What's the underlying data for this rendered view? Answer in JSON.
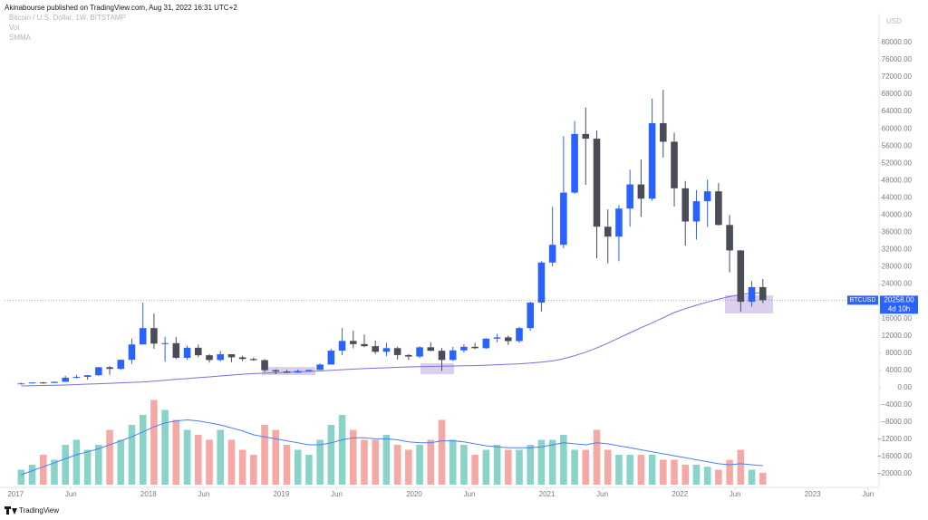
{
  "header": "Akinabourse published on TradingView.com, Aug 31, 2022 16:31 UTC+2",
  "footer": "TradingView",
  "chart_data": {
    "type": "candlestick",
    "title": "Bitcoin / U.S. Dollar, 1W, BITSTAMP",
    "volume_label": "Vol",
    "smma_label": "SMMA",
    "currency": "USD",
    "symbol": "BTCUSD",
    "last_price": {
      "value": 20258,
      "label": "20258.00"
    },
    "countdown": "4d 10h",
    "up_color": "#2962ff",
    "down_color": "#4a4d57",
    "volume_up_color": "#89d3c9",
    "volume_down_color": "#f5a9a5",
    "smma_color": "#7e6fd6",
    "volume_ma_color": "#4a7ff0",
    "x": [
      "2017-01",
      "2017-02",
      "2017-03",
      "2017-04",
      "2017-05",
      "2017-06",
      "2017-07",
      "2017-08",
      "2017-09",
      "2017-10",
      "2017-11",
      "2017-12",
      "2018-01",
      "2018-02",
      "2018-03",
      "2018-04",
      "2018-05",
      "2018-06",
      "2018-07",
      "2018-08",
      "2018-09",
      "2018-10",
      "2018-11",
      "2018-12",
      "2019-01",
      "2019-02",
      "2019-03",
      "2019-04",
      "2019-05",
      "2019-06",
      "2019-07",
      "2019-08",
      "2019-09",
      "2019-10",
      "2019-11",
      "2019-12",
      "2020-01",
      "2020-02",
      "2020-03",
      "2020-04",
      "2020-05",
      "2020-06",
      "2020-07",
      "2020-08",
      "2020-09",
      "2020-10",
      "2020-11",
      "2020-12",
      "2021-01",
      "2021-02",
      "2021-03",
      "2021-04",
      "2021-05",
      "2021-06",
      "2021-07",
      "2021-08",
      "2021-09",
      "2021-10",
      "2021-11",
      "2021-12",
      "2022-01",
      "2022-02",
      "2022-03",
      "2022-04",
      "2022-05",
      "2022-06",
      "2022-07",
      "2022-08"
    ],
    "open": [
      963,
      970,
      1190,
      1080,
      1350,
      2300,
      2480,
      2870,
      4730,
      4340,
      6450,
      10000,
      13800,
      10200,
      10300,
      6900,
      9240,
      7500,
      6400,
      7730,
      7030,
      6630,
      6370,
      4040,
      3740,
      3460,
      3850,
      4100,
      5350,
      8570,
      10820,
      10080,
      9600,
      8300,
      9150,
      7550,
      7190,
      9350,
      8540,
      6410,
      8630,
      9460,
      9140,
      11350,
      11650,
      10780,
      13800,
      19700,
      28990,
      33100,
      45200,
      58800,
      57700,
      37300,
      35000,
      41500,
      47100,
      43800,
      61300,
      57000,
      46200,
      38500,
      43200,
      45500,
      37700,
      31800,
      19900,
      23300
    ],
    "high": [
      1150,
      1200,
      1350,
      1350,
      2760,
      3000,
      2920,
      4750,
      5000,
      6470,
      11400,
      19700,
      17200,
      11800,
      11700,
      9750,
      9990,
      7770,
      8500,
      7760,
      7410,
      6990,
      6600,
      4250,
      4100,
      4200,
      4120,
      5600,
      9000,
      13800,
      13200,
      12300,
      10900,
      10400,
      9500,
      7750,
      9580,
      10500,
      9190,
      9470,
      10070,
      10400,
      11440,
      12470,
      12070,
      14100,
      19900,
      29300,
      41900,
      58300,
      61800,
      64900,
      59600,
      41300,
      42300,
      50500,
      52900,
      67000,
      69000,
      59100,
      47900,
      45800,
      48200,
      47400,
      40000,
      31900,
      24700,
      25200
    ],
    "low": [
      750,
      920,
      890,
      1060,
      1350,
      2100,
      1840,
      2700,
      2980,
      4120,
      5500,
      10900,
      9000,
      6000,
      6600,
      6430,
      7050,
      5800,
      6100,
      5880,
      6150,
      6200,
      3600,
      3130,
      3400,
      3400,
      3690,
      4080,
      5330,
      7500,
      9100,
      9400,
      7800,
      7300,
      6500,
      6430,
      6850,
      8450,
      3850,
      6150,
      8100,
      8900,
      8990,
      10550,
      9900,
      10400,
      13200,
      17600,
      28100,
      32300,
      44900,
      47000,
      30000,
      28800,
      29300,
      37300,
      39600,
      43300,
      53300,
      42000,
      32900,
      34300,
      37200,
      37600,
      26700,
      17600,
      18800,
      19600
    ],
    "close": [
      970,
      1190,
      1080,
      1350,
      2300,
      2480,
      2870,
      4730,
      4340,
      6450,
      10000,
      13800,
      10200,
      10300,
      6900,
      9240,
      7500,
      6400,
      7730,
      7030,
      6630,
      6370,
      4040,
      3740,
      3460,
      3850,
      4100,
      5350,
      8570,
      10820,
      10080,
      9600,
      8300,
      9150,
      7550,
      7190,
      9350,
      8540,
      6410,
      8630,
      9460,
      9140,
      11350,
      11650,
      10780,
      13800,
      19700,
      28990,
      33100,
      45200,
      58800,
      57700,
      37300,
      35000,
      41500,
      47100,
      43800,
      61300,
      57000,
      46200,
      38500,
      43200,
      45500,
      37700,
      31800,
      19900,
      23300,
      20258
    ],
    "smma": [
      400,
      450,
      500,
      550,
      600,
      700,
      800,
      900,
      1000,
      1100,
      1200,
      1300,
      1500,
      1700,
      1900,
      2100,
      2300,
      2500,
      2700,
      2900,
      3100,
      3250,
      3350,
      3450,
      3550,
      3650,
      3750,
      3850,
      4000,
      4150,
      4300,
      4400,
      4500,
      4600,
      4700,
      4800,
      4850,
      4900,
      4950,
      5000,
      5050,
      5100,
      5200,
      5300,
      5400,
      5500,
      5700,
      5900,
      6200,
      6700,
      7400,
      8200,
      9200,
      10300,
      11500,
      12700,
      13900,
      15000,
      16200,
      17400,
      18300,
      19100,
      19800,
      20500,
      21100,
      21600,
      21900,
      22000
    ],
    "volume": [
      15,
      20,
      30,
      25,
      40,
      45,
      35,
      40,
      55,
      45,
      60,
      70,
      85,
      75,
      65,
      55,
      50,
      45,
      55,
      45,
      35,
      30,
      60,
      55,
      40,
      35,
      30,
      45,
      60,
      70,
      55,
      45,
      45,
      50,
      40,
      35,
      40,
      45,
      65,
      45,
      40,
      30,
      35,
      40,
      35,
      35,
      40,
      45,
      45,
      50,
      35,
      35,
      55,
      35,
      30,
      30,
      30,
      30,
      25,
      25,
      20,
      20,
      18,
      15,
      25,
      35,
      15,
      12
    ],
    "volume_ma": [
      10,
      14,
      18,
      22,
      26,
      30,
      33,
      36,
      40,
      44,
      48,
      53,
      58,
      62,
      64,
      65,
      64,
      62,
      60,
      57,
      54,
      50,
      48,
      46,
      44,
      42,
      40,
      40,
      42,
      45,
      47,
      47,
      46,
      46,
      45,
      43,
      42,
      42,
      44,
      44,
      43,
      41,
      39,
      38,
      37,
      37,
      37,
      38,
      40,
      42,
      41,
      40,
      42,
      41,
      39,
      37,
      35,
      33,
      31,
      29,
      27,
      25,
      23,
      21,
      20,
      21,
      20,
      19
    ],
    "vlim": [
      0,
      100
    ],
    "xlim": [
      "2016-12",
      "2023-07"
    ],
    "xticks": [
      {
        "value": "2017-01",
        "label": "2017"
      },
      {
        "value": "2017-06",
        "label": "Jun"
      },
      {
        "value": "2018-01",
        "label": "2018"
      },
      {
        "value": "2018-06",
        "label": "Jun"
      },
      {
        "value": "2019-01",
        "label": "2019"
      },
      {
        "value": "2019-06",
        "label": "Jun"
      },
      {
        "value": "2020-01",
        "label": "2020"
      },
      {
        "value": "2020-06",
        "label": "Jun"
      },
      {
        "value": "2021-01",
        "label": "2021"
      },
      {
        "value": "2021-06",
        "label": "Jun"
      },
      {
        "value": "2022-01",
        "label": "2022"
      },
      {
        "value": "2022-06",
        "label": "Jun"
      },
      {
        "value": "2023-01",
        "label": "2023"
      },
      {
        "value": "2023-06",
        "label": "Jun"
      }
    ],
    "ylim": [
      -22500,
      86700
    ],
    "yticks": [
      {
        "value": 80000,
        "label": "80000.00"
      },
      {
        "value": 76000,
        "label": "76000.00"
      },
      {
        "value": 72000,
        "label": "72000.00"
      },
      {
        "value": 68000,
        "label": "68000.00"
      },
      {
        "value": 64000,
        "label": "64000.00"
      },
      {
        "value": 60000,
        "label": "60000.00"
      },
      {
        "value": 56000,
        "label": "56000.00"
      },
      {
        "value": 52000,
        "label": "52000.00"
      },
      {
        "value": 48000,
        "label": "48000.00"
      },
      {
        "value": 44000,
        "label": "44000.00"
      },
      {
        "value": 40000,
        "label": "40000.00"
      },
      {
        "value": 36000,
        "label": "36000.00"
      },
      {
        "value": 32000,
        "label": "32000.00"
      },
      {
        "value": 28000,
        "label": "28000.00"
      },
      {
        "value": 24000,
        "label": "24000.00"
      },
      {
        "value": 20000,
        "label": "20000.00"
      },
      {
        "value": 16000,
        "label": "16000.00"
      },
      {
        "value": 12000,
        "label": "12000.00"
      },
      {
        "value": 8000,
        "label": "8000.00"
      },
      {
        "value": 4000,
        "label": "4000.00"
      },
      {
        "value": 0,
        "label": "0.00"
      },
      {
        "value": -4000,
        "label": "−4000.00"
      },
      {
        "value": -8000,
        "label": "−8000.00"
      },
      {
        "value": -12000,
        "label": "−12000.00"
      },
      {
        "value": -16000,
        "label": "−16000.00"
      },
      {
        "value": -20000,
        "label": "−20000.00"
      }
    ]
  }
}
